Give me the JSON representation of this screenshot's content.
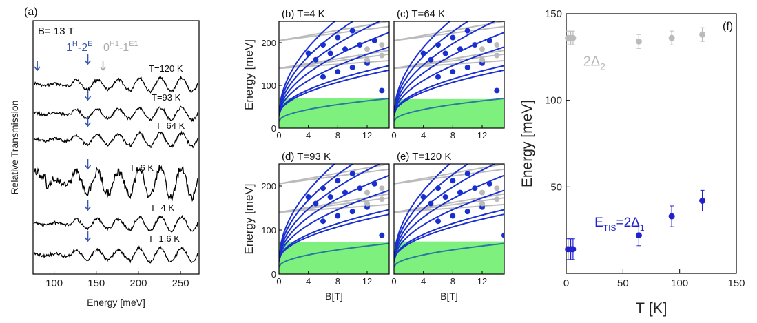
{
  "chart_data": [
    {
      "panel": "(a)",
      "type": "line",
      "annotations": {
        "field": "B= 13 T",
        "blue_label": "1",
        "blue_sup1": "H",
        "blue_dash": "-2",
        "blue_sup2": "E",
        "gray_label": "0",
        "gray_sup1": "H1",
        "gray_dash": "-1",
        "gray_sup2": "E1"
      },
      "xlabel": "Energy [meV]",
      "ylabel": "Relative Transmission",
      "xlim": [
        75,
        272
      ],
      "xticks": [
        100,
        150,
        200,
        250
      ],
      "series": [
        {
          "name": "T=120 K",
          "arrow_x": 140
        },
        {
          "name": "T=93 K",
          "arrow_x": 140
        },
        {
          "name": "T=64 K",
          "arrow_x": 140
        },
        {
          "name": "T=6 K",
          "arrow_x": 140
        },
        {
          "name": "T=4 K",
          "arrow_x": 140
        },
        {
          "name": "T=1.6 K",
          "arrow_x": 140
        }
      ],
      "extra_arrows": [
        {
          "x": 80,
          "color": "#3a57b0"
        },
        {
          "x": 158,
          "color": "#aaaaaa"
        }
      ]
    },
    {
      "panel": "(b)",
      "type": "scatter",
      "title": "T=4 K",
      "xlabel": "",
      "ylabel": "Energy  [meV]",
      "xlim": [
        0,
        15
      ],
      "ylim": [
        0,
        250
      ],
      "xticks": [
        0,
        4,
        8,
        12
      ],
      "yticks": [
        0,
        100,
        200
      ],
      "band_top": 70,
      "last_point_x": 14
    },
    {
      "panel": "(c)",
      "type": "scatter",
      "title": "T=64 K",
      "xlabel": "",
      "ylabel": "",
      "xlim": [
        0,
        15
      ],
      "ylim": [
        0,
        250
      ],
      "xticks": [
        0,
        4,
        8,
        12
      ],
      "yticks": [],
      "band_top": 68,
      "last_point_x": 14
    },
    {
      "panel": "(d)",
      "type": "scatter",
      "title": "T=93 K",
      "xlabel": "B[T]",
      "ylabel": "Energy [meV]",
      "xlim": [
        0,
        15
      ],
      "ylim": [
        0,
        250
      ],
      "xticks": [
        0,
        4,
        8,
        12
      ],
      "yticks": [
        0,
        100,
        200
      ],
      "band_top": 72,
      "last_point_x": 14
    },
    {
      "panel": "(e)",
      "type": "scatter",
      "title": "T=120 K",
      "xlabel": "B[T]",
      "ylabel": "",
      "xlim": [
        0,
        15
      ],
      "ylim": [
        0,
        250
      ],
      "xticks": [
        0,
        4,
        8,
        12
      ],
      "yticks": [],
      "band_top": 74,
      "last_point_x": 15
    },
    {
      "panel": "(f)",
      "type": "scatter",
      "xlabel": "T [K]",
      "ylabel": "Energy [meV]",
      "xlim": [
        0,
        150
      ],
      "ylim": [
        0,
        150
      ],
      "xticks": [
        0,
        50,
        100,
        150
      ],
      "yticks": [
        50,
        100,
        150
      ],
      "series": [
        {
          "name": "2Δ",
          "name_main": "2Δ",
          "name_sub": "2",
          "color": "#bbbbbb",
          "points": [
            [
              1.6,
              136,
              4
            ],
            [
              4,
              136,
              4
            ],
            [
              6,
              136,
              4
            ],
            [
              64,
              134,
              4
            ],
            [
              93,
              136,
              4
            ],
            [
              120,
              138,
              4
            ]
          ]
        },
        {
          "name": "E=2Δ",
          "name_main": "E",
          "name_sub": "TIS",
          "name_eq": "=2Δ",
          "name_sub2": "1",
          "color": "#2222cc",
          "points": [
            [
              1.6,
              14,
              6
            ],
            [
              4,
              14,
              6
            ],
            [
              6,
              14,
              6
            ],
            [
              64,
              22,
              6
            ],
            [
              93,
              33,
              6
            ],
            [
              120,
              42,
              6
            ]
          ]
        }
      ]
    }
  ]
}
